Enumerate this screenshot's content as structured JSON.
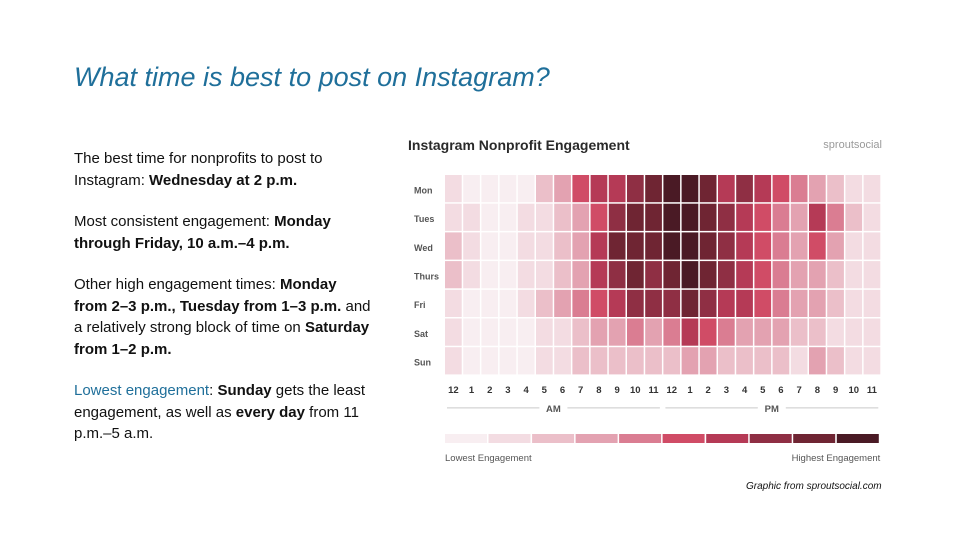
{
  "slide": {
    "title": "What time is best to post on Instagram?",
    "credit": "Graphic from sproutsocial.com"
  },
  "bullets": [
    {
      "parts": [
        {
          "text": "The best time for nonprofits to post to Instagram: ",
          "bold": false
        },
        {
          "text": "Wednesday at 2 p.m.",
          "bold": true
        }
      ]
    },
    {
      "parts": [
        {
          "text": "Most consistent engagement: ",
          "bold": false
        },
        {
          "text": "Monday through Friday, 10 a.m.–4 p.m.",
          "bold": true
        }
      ]
    },
    {
      "parts": [
        {
          "text": "Other high engagement times: ",
          "bold": false
        },
        {
          "text": "Monday from 2–3 p.m., Tuesday from 1–3 p.m.",
          "bold": true
        },
        {
          "text": " and a relatively strong block of time on ",
          "bold": false
        },
        {
          "text": "Saturday from 1–2 p.m.",
          "bold": true
        }
      ]
    },
    {
      "parts": [
        {
          "text": "Lowest engagement",
          "bold": false,
          "accent": true
        },
        {
          "text": ": ",
          "bold": false
        },
        {
          "text": "Sunday",
          "bold": true
        },
        {
          "text": " gets the least engagement, as well as ",
          "bold": false
        },
        {
          "text": "every day",
          "bold": true
        },
        {
          "text": " from 11 p.m.–5 a.m.",
          "bold": false
        }
      ]
    }
  ],
  "chart_data": {
    "type": "heatmap",
    "title": "Instagram Nonprofit Engagement",
    "brand": "sproutsocial",
    "rows": [
      "Mon",
      "Tues",
      "Wed",
      "Thurs",
      "Fri",
      "Sat",
      "Sun"
    ],
    "columns": [
      "12",
      "1",
      "2",
      "3",
      "4",
      "5",
      "6",
      "7",
      "8",
      "9",
      "10",
      "11",
      "12",
      "1",
      "2",
      "3",
      "4",
      "5",
      "6",
      "7",
      "8",
      "9",
      "10",
      "11"
    ],
    "column_groups": [
      {
        "label": "AM",
        "from": 0,
        "to": 11
      },
      {
        "label": "PM",
        "from": 12,
        "to": 23
      }
    ],
    "scale_levels": 10,
    "values": [
      [
        1,
        0,
        0,
        0,
        0,
        2,
        3,
        5,
        6,
        6,
        7,
        8,
        9,
        9,
        8,
        6,
        7,
        6,
        5,
        4,
        3,
        2,
        1,
        1
      ],
      [
        1,
        1,
        0,
        0,
        1,
        1,
        2,
        3,
        5,
        7,
        8,
        8,
        9,
        9,
        8,
        7,
        6,
        5,
        4,
        3,
        6,
        4,
        2,
        1
      ],
      [
        2,
        1,
        0,
        0,
        1,
        1,
        2,
        3,
        6,
        8,
        8,
        8,
        9,
        9,
        8,
        7,
        6,
        5,
        4,
        3,
        5,
        3,
        1,
        1
      ],
      [
        2,
        1,
        0,
        0,
        1,
        1,
        2,
        3,
        6,
        7,
        8,
        7,
        8,
        9,
        8,
        7,
        6,
        5,
        4,
        3,
        3,
        2,
        1,
        1
      ],
      [
        1,
        0,
        0,
        0,
        1,
        2,
        3,
        4,
        5,
        6,
        7,
        7,
        7,
        8,
        7,
        6,
        6,
        5,
        4,
        3,
        3,
        2,
        1,
        1
      ],
      [
        1,
        0,
        0,
        0,
        0,
        1,
        1,
        2,
        3,
        3,
        4,
        3,
        4,
        6,
        5,
        4,
        3,
        3,
        3,
        2,
        2,
        1,
        1,
        1
      ],
      [
        1,
        0,
        0,
        0,
        0,
        1,
        1,
        2,
        2,
        2,
        2,
        2,
        2,
        3,
        3,
        2,
        2,
        2,
        2,
        1,
        3,
        2,
        1,
        1
      ]
    ],
    "palette": [
      "#f8eef1",
      "#f3dce2",
      "#ebbfc9",
      "#e3a2b1",
      "#da7d92",
      "#d04c66",
      "#b53a56",
      "#8f2f44",
      "#6f2533",
      "#4a1a25"
    ],
    "legend": {
      "low_label": "Lowest Engagement",
      "high_label": "Highest Engagement"
    }
  }
}
